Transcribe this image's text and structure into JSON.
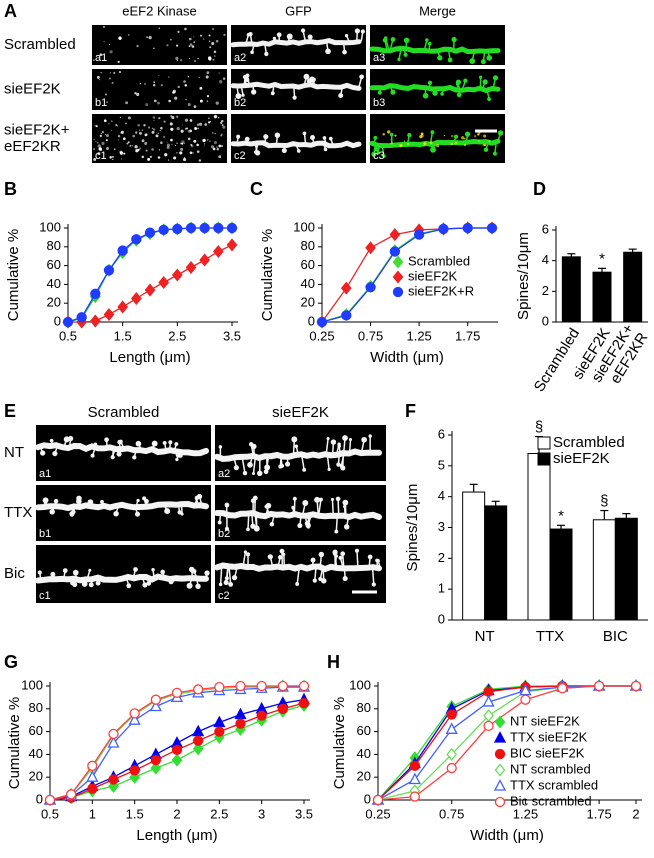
{
  "image_panels": [
    {
      "panel_label": "A",
      "columns": [
        "eEF2 Kinase",
        "GFP",
        "Merge"
      ],
      "rows": [
        "Scrambled",
        "sieEF2K",
        "sieEF2K+\neEF2KR"
      ],
      "tiles": [
        [
          "a1",
          "a2",
          "a3"
        ],
        [
          "b1",
          "b2",
          "b3"
        ],
        [
          "c1",
          "c2",
          "c3"
        ]
      ]
    },
    {
      "panel_label": "E",
      "columns": [
        "Scrambled",
        "sieEF2K"
      ],
      "rows": [
        "NT",
        "TTX",
        "Bic"
      ],
      "tiles": [
        [
          "a1",
          "a2"
        ],
        [
          "b1",
          "b2"
        ],
        [
          "c1",
          "c2"
        ]
      ]
    }
  ],
  "chart_data": [
    {
      "panel_label": "B",
      "type": "line",
      "ylabel": "Cumulative %",
      "xlabel": "Length (μm)",
      "x": [
        0.5,
        0.75,
        1,
        1.25,
        1.5,
        1.75,
        2,
        2.25,
        2.5,
        2.75,
        3,
        3.25,
        3.5
      ],
      "xlim": [
        0.5,
        3.5
      ],
      "xticks": [
        0.5,
        1.5,
        2.5,
        3.5
      ],
      "ylim": [
        0,
        100
      ],
      "yticks": [
        0,
        20,
        40,
        60,
        80,
        100
      ],
      "legend": false,
      "series": [
        {
          "color": "#33cc33",
          "marker": "diamond",
          "filled": true,
          "values": [
            0,
            4,
            27,
            55,
            74,
            87,
            94,
            98,
            99,
            100,
            100,
            100,
            100
          ]
        },
        {
          "color": "#ee2222",
          "marker": "diamond",
          "filled": true,
          "values": [
            0,
            0,
            1,
            8,
            16,
            25,
            34,
            42,
            50,
            58,
            66,
            75,
            82
          ]
        },
        {
          "color": "#1f3cff",
          "marker": "circle",
          "filled": true,
          "values": [
            0,
            5,
            30,
            55,
            76,
            88,
            95,
            98,
            99,
            100,
            100,
            100,
            100
          ]
        }
      ]
    },
    {
      "panel_label": "C",
      "type": "line",
      "ylabel": "Cumulative %",
      "xlabel": "Width (μm)",
      "x": [
        0.25,
        0.5,
        0.75,
        1,
        1.25,
        1.5,
        1.75,
        2
      ],
      "xlim": [
        0.25,
        2
      ],
      "xticks": [
        0.25,
        0.75,
        1.25,
        1.75
      ],
      "ylim": [
        0,
        100
      ],
      "yticks": [
        0,
        20,
        40,
        60,
        80,
        100
      ],
      "legend": "lower right",
      "series": [
        {
          "name": "Scrambled",
          "color": "#44dd33",
          "marker": "diamond",
          "filled": true,
          "values": [
            0,
            8,
            38,
            76,
            94,
            99,
            100,
            100
          ]
        },
        {
          "name": "sieEF2K",
          "color": "#ee2222",
          "marker": "diamond",
          "filled": true,
          "values": [
            0,
            36,
            79,
            93,
            98,
            99,
            100,
            100
          ]
        },
        {
          "name": "sieEF2K+R",
          "color": "#1f3cff",
          "marker": "circle",
          "filled": true,
          "values": [
            0,
            7,
            37,
            75,
            93,
            99,
            100,
            100
          ]
        }
      ]
    },
    {
      "panel_label": "D",
      "type": "bar",
      "ylabel": "Spines/10μm",
      "categories": [
        "Scrambled",
        "sieEF2K",
        "sieEF2K+\neEF2KR"
      ],
      "values": [
        4.25,
        3.25,
        4.55
      ],
      "errors": [
        0.2,
        0.25,
        0.2
      ],
      "significance": [
        null,
        "*",
        null
      ],
      "color": "#000000",
      "ylim": [
        0,
        6
      ],
      "yticks": [
        0,
        2,
        4,
        6
      ],
      "legend": false
    },
    {
      "panel_label": "F",
      "type": "bar",
      "ylabel": "Spines/10μm",
      "categories": [
        "NT",
        "TTX",
        "BIC"
      ],
      "ylim": [
        0,
        6
      ],
      "yticks": [
        0,
        1,
        2,
        3,
        4,
        5,
        6
      ],
      "legend": "upper right",
      "series": [
        {
          "name": "Scrambled",
          "color": "#ffffff",
          "values": [
            4.15,
            5.4,
            3.25
          ],
          "errors": [
            0.25,
            0.55,
            0.3
          ],
          "significance": [
            null,
            "§",
            "§"
          ]
        },
        {
          "name": "sieEF2K",
          "color": "#000000",
          "values": [
            3.7,
            2.95,
            3.3
          ],
          "errors": [
            0.15,
            0.12,
            0.15
          ],
          "significance": [
            null,
            "*",
            null
          ]
        }
      ]
    },
    {
      "panel_label": "G",
      "type": "line",
      "ylabel": "Cumulative %",
      "xlabel": "Length (μm)",
      "x": [
        0.5,
        0.75,
        1,
        1.25,
        1.5,
        1.75,
        2,
        2.25,
        2.5,
        2.75,
        3,
        3.25,
        3.5
      ],
      "xlim": [
        0.5,
        3.5
      ],
      "xticks": [
        0.5,
        1,
        1.5,
        2,
        2.5,
        3,
        3.5
      ],
      "ylim": [
        0,
        100
      ],
      "yticks": [
        0,
        20,
        40,
        60,
        80,
        100
      ],
      "legend": false,
      "series": [
        {
          "name": "NT sieEF2K",
          "color": "#33dd33",
          "marker": "diamond",
          "filled": true,
          "values": [
            0,
            2,
            8,
            12,
            20,
            28,
            35,
            45,
            55,
            62,
            70,
            78,
            83
          ]
        },
        {
          "name": "TTX sieEF2K",
          "color": "#0000ee",
          "marker": "triangle",
          "filled": true,
          "values": [
            0,
            3,
            12,
            20,
            30,
            40,
            50,
            60,
            68,
            75,
            80,
            85,
            88
          ]
        },
        {
          "name": "BIC sieEF2K",
          "color": "#ee1111",
          "marker": "circle",
          "filled": true,
          "values": [
            0,
            2,
            10,
            18,
            26,
            35,
            44,
            52,
            60,
            67,
            74,
            80,
            85
          ]
        },
        {
          "name": "NT scrambled",
          "color": "#66dd55",
          "marker": "diamond",
          "filled": false,
          "values": [
            0,
            5,
            28,
            57,
            75,
            87,
            93,
            96,
            98,
            99,
            99,
            100,
            100
          ]
        },
        {
          "name": "TTX scrambled",
          "color": "#4060ff",
          "marker": "triangle",
          "filled": false,
          "values": [
            0,
            4,
            20,
            50,
            70,
            82,
            90,
            94,
            96,
            97,
            98,
            99,
            99
          ]
        },
        {
          "name": "Bic scrambled",
          "color": "#ff4040",
          "marker": "circle",
          "filled": false,
          "values": [
            0,
            5,
            30,
            58,
            76,
            88,
            94,
            97,
            99,
            100,
            100,
            100,
            100
          ]
        }
      ]
    },
    {
      "panel_label": "H",
      "type": "line",
      "ylabel": "Cumulative %",
      "xlabel": "Width (μm)",
      "x": [
        0.25,
        0.5,
        0.75,
        1,
        1.25,
        1.5,
        1.75,
        2
      ],
      "xlim": [
        0.25,
        2
      ],
      "xticks": [
        0.25,
        0.75,
        1.25,
        1.75,
        2
      ],
      "ylim": [
        0,
        100
      ],
      "yticks": [
        0,
        20,
        40,
        60,
        80,
        100
      ],
      "legend": "center right",
      "series": [
        {
          "name": "NT sieEF2K",
          "color": "#33dd33",
          "marker": "diamond",
          "filled": true,
          "values": [
            0,
            37,
            82,
            97,
            100,
            100,
            100,
            100
          ]
        },
        {
          "name": "TTX sieEF2K",
          "color": "#0000ee",
          "marker": "triangle",
          "filled": true,
          "values": [
            0,
            32,
            80,
            96,
            99,
            100,
            100,
            100
          ]
        },
        {
          "name": "BIC sieEF2K",
          "color": "#ee1111",
          "marker": "circle",
          "filled": true,
          "values": [
            0,
            30,
            75,
            95,
            99,
            100,
            100,
            100
          ]
        },
        {
          "name": "NT scrambled",
          "color": "#66dd55",
          "marker": "diamond",
          "filled": false,
          "values": [
            0,
            8,
            40,
            74,
            95,
            99,
            100,
            100
          ]
        },
        {
          "name": "TTX scrambled",
          "color": "#4060ff",
          "marker": "triangle",
          "filled": false,
          "values": [
            0,
            18,
            62,
            86,
            96,
            99,
            100,
            100
          ]
        },
        {
          "name": "Bic scrambled",
          "color": "#ff4040",
          "marker": "circle",
          "filled": false,
          "values": [
            0,
            3,
            28,
            65,
            88,
            98,
            100,
            100
          ]
        }
      ]
    }
  ]
}
